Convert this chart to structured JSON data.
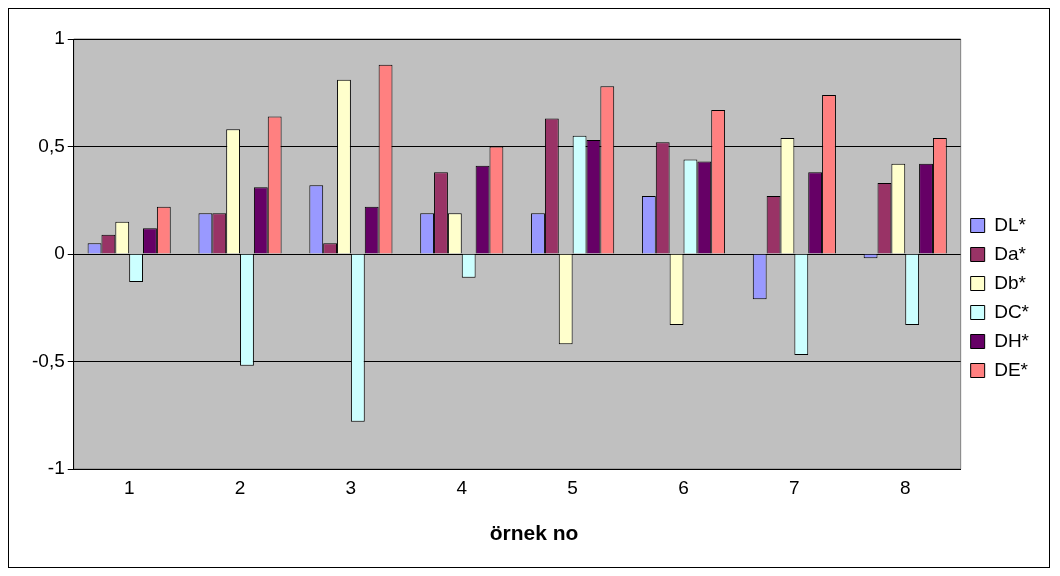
{
  "chart_data": {
    "type": "bar",
    "xlabel": "örnek no",
    "categories": [
      "1",
      "2",
      "3",
      "4",
      "5",
      "6",
      "7",
      "8"
    ],
    "series": [
      {
        "name": "DL*",
        "color": "#9999ff",
        "values": [
          0.05,
          0.19,
          0.32,
          0.19,
          0.19,
          0.27,
          -0.21,
          -0.02
        ]
      },
      {
        "name": "Da*",
        "color": "#993366",
        "values": [
          0.09,
          0.19,
          0.05,
          0.38,
          0.63,
          0.52,
          0.27,
          0.33
        ]
      },
      {
        "name": "Db*",
        "color": "#ffffcc",
        "values": [
          0.15,
          0.58,
          0.81,
          0.19,
          -0.42,
          -0.33,
          0.54,
          0.42
        ]
      },
      {
        "name": "DC*",
        "color": "#ccffff",
        "values": [
          -0.13,
          -0.52,
          -0.78,
          -0.11,
          0.55,
          0.44,
          -0.47,
          -0.33
        ]
      },
      {
        "name": "DH*",
        "color": "#660066",
        "values": [
          0.12,
          0.31,
          0.22,
          0.41,
          0.53,
          0.43,
          0.38,
          0.42
        ]
      },
      {
        "name": "DE*",
        "color": "#ff8080",
        "values": [
          0.22,
          0.64,
          0.88,
          0.5,
          0.78,
          0.67,
          0.74,
          0.54
        ]
      }
    ],
    "ylim": [
      -1,
      1
    ],
    "yticks": [
      -1,
      {
        "value": -0.5,
        "label": "-0,5"
      },
      0,
      {
        "value": 0.5,
        "label": "0,5"
      },
      1
    ],
    "grid": "y",
    "legend": "right"
  }
}
